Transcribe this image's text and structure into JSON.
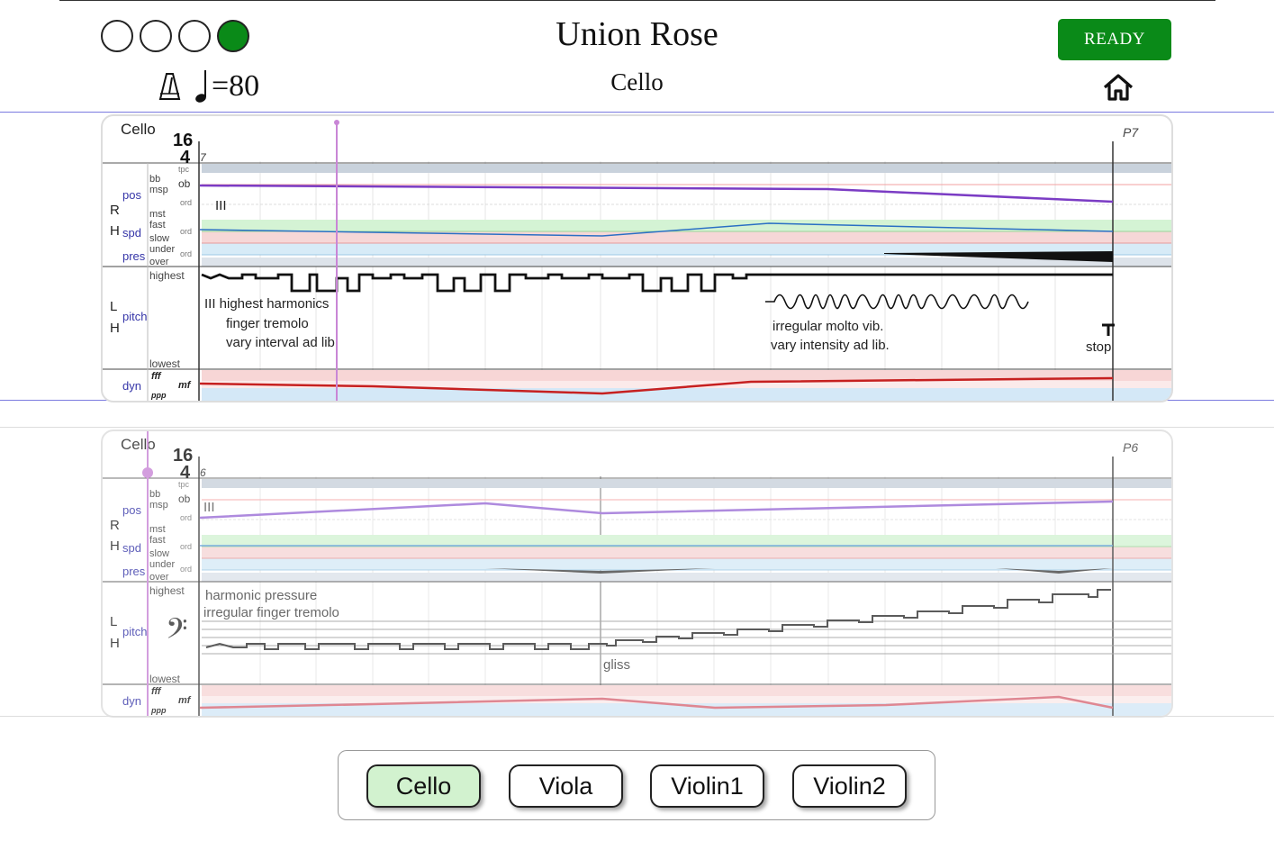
{
  "header": {
    "title": "Union Rose",
    "instrument": "Cello",
    "ready_label": "READY",
    "tempo_text": "=80",
    "beats": [
      false,
      false,
      false,
      true
    ],
    "beat_on_color": "#0a8a18"
  },
  "score_top": {
    "instrument_label": "Cello",
    "time_sig_top": "16",
    "time_sig_bottom": "4",
    "measure_number": "7",
    "page_label": "P7",
    "string_label": "III",
    "notes": [
      "III highest harmonics",
      "finger tremolo",
      "vary interval ad lib",
      "irregular molto vib.",
      "vary intensity ad lib.",
      "stop"
    ]
  },
  "score_bottom": {
    "instrument_label": "Cello",
    "time_sig_top": "16",
    "time_sig_bottom": "4",
    "measure_number": "6",
    "page_label": "P6",
    "string_label": "III",
    "notes": [
      "harmonic pressure",
      "irregular finger tremolo",
      "gliss"
    ]
  },
  "axis_labels": {
    "rh": [
      "R",
      "H"
    ],
    "lh": [
      "L",
      "H"
    ],
    "pos": "pos",
    "spd": "spd",
    "pres": "pres",
    "pitch": "pitch",
    "dyn": "dyn",
    "pos_levels": [
      "bb",
      "msp",
      "mst",
      "tpc",
      "ob",
      "ord"
    ],
    "spd_levels": [
      "fast",
      "slow",
      "ord"
    ],
    "pres_levels": [
      "under",
      "over",
      "ord"
    ],
    "pitch_levels": [
      "highest",
      "lowest"
    ],
    "dyn_levels": [
      "fff",
      "ppp",
      "mf"
    ]
  },
  "parts": [
    {
      "label": "Cello",
      "active": true
    },
    {
      "label": "Viola",
      "active": false
    },
    {
      "label": "Violin1",
      "active": false
    },
    {
      "label": "Violin2",
      "active": false
    }
  ]
}
